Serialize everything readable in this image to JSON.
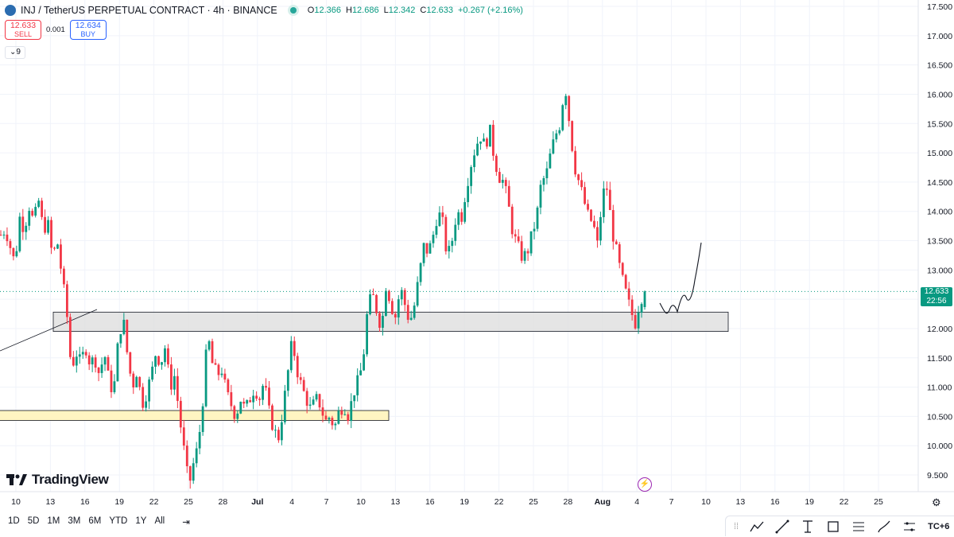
{
  "header": {
    "title": "INJ / TetherUS PERPETUAL CONTRACT · 4h · BINANCE",
    "ohlc": [
      {
        "label": "O",
        "value": "12.366"
      },
      {
        "label": "H",
        "value": "12.686"
      },
      {
        "label": "L",
        "value": "12.342"
      },
      {
        "label": "C",
        "value": "12.633"
      },
      {
        "label": "",
        "value": "+0.267 (+2.16%)"
      }
    ]
  },
  "trade": {
    "sell_price": "12.633",
    "sell_label": "SELL",
    "spread": "0.001",
    "buy_price": "12.634",
    "buy_label": "BUY"
  },
  "indicators_collapse": "9",
  "brand": "TradingView",
  "price_tag": {
    "price": "12.633",
    "countdown": "22:56"
  },
  "timeframes": [
    "1D",
    "5D",
    "1M",
    "3M",
    "6M",
    "YTD",
    "1Y",
    "All"
  ],
  "timezone_label": "TC+6",
  "colors": {
    "up": "#089981",
    "down": "#f23645",
    "zone": "#d9d9d9",
    "yellow_zone": "#fff5c2"
  },
  "chart_data": {
    "type": "candlestick",
    "title": "INJ / TetherUS PERPETUAL CONTRACT · 4h · BINANCE",
    "y_axis_labels": [
      "17.500",
      "17.000",
      "16.500",
      "16.000",
      "15.500",
      "15.000",
      "14.500",
      "14.000",
      "13.500",
      "13.000",
      "12.500",
      "12.000",
      "11.500",
      "11.000",
      "10.500",
      "10.000",
      "9.500"
    ],
    "ylim": [
      9.2,
      17.6
    ],
    "x_axis_labels": [
      "10",
      "13",
      "16",
      "19",
      "22",
      "25",
      "28",
      "Jul",
      "4",
      "7",
      "10",
      "13",
      "16",
      "19",
      "22",
      "25",
      "28",
      "Aug",
      "4",
      "7",
      "10",
      "13",
      "16",
      "19",
      "22",
      "25"
    ],
    "last_price": 12.633,
    "zones": [
      {
        "name": "resistance-support-zone",
        "low": 11.95,
        "high": 12.28
      },
      {
        "name": "demand-zone",
        "low": 10.43,
        "high": 10.6
      }
    ],
    "path_points": [
      [
        0,
        13.6
      ],
      [
        3,
        13.7
      ],
      [
        6,
        13.4
      ],
      [
        9,
        13.1
      ],
      [
        12,
        13.9
      ],
      [
        15,
        13.7
      ],
      [
        18,
        14.1
      ],
      [
        21,
        13.8
      ],
      [
        24,
        14.2
      ],
      [
        27,
        13.7
      ],
      [
        30,
        13.8
      ],
      [
        33,
        13.2
      ],
      [
        36,
        13.5
      ],
      [
        39,
        12.9
      ],
      [
        42,
        12.3
      ],
      [
        45,
        11.3
      ],
      [
        48,
        11.6
      ],
      [
        51,
        11.4
      ],
      [
        54,
        11.7
      ],
      [
        57,
        11.4
      ],
      [
        60,
        11.5
      ],
      [
        63,
        11.2
      ],
      [
        66,
        11.6
      ],
      [
        69,
        11.1
      ],
      [
        72,
        10.9
      ],
      [
        75,
        11.8
      ],
      [
        78,
        12.2
      ],
      [
        81,
        11.5
      ],
      [
        84,
        11.0
      ],
      [
        87,
        11.3
      ],
      [
        90,
        10.7
      ],
      [
        93,
        10.9
      ],
      [
        96,
        11.2
      ],
      [
        99,
        11.6
      ],
      [
        102,
        11.4
      ],
      [
        105,
        11.7
      ],
      [
        108,
        11.0
      ],
      [
        111,
        11.2
      ],
      [
        114,
        10.5
      ],
      [
        117,
        9.9
      ],
      [
        120,
        9.3
      ],
      [
        123,
        9.7
      ],
      [
        126,
        10.0
      ],
      [
        129,
        10.8
      ],
      [
        132,
        11.9
      ],
      [
        135,
        11.4
      ],
      [
        138,
        11.2
      ],
      [
        141,
        11.3
      ],
      [
        144,
        10.9
      ],
      [
        147,
        10.7
      ],
      [
        150,
        10.5
      ],
      [
        153,
        10.8
      ],
      [
        156,
        10.6
      ],
      [
        159,
        10.8
      ],
      [
        162,
        11.0
      ],
      [
        165,
        10.8
      ],
      [
        168,
        11.1
      ],
      [
        171,
        10.6
      ],
      [
        174,
        10.3
      ],
      [
        177,
        10.1
      ],
      [
        180,
        10.6
      ],
      [
        183,
        11.2
      ],
      [
        186,
        11.8
      ],
      [
        189,
        11.3
      ],
      [
        192,
        11.0
      ],
      [
        195,
        10.8
      ],
      [
        198,
        10.6
      ],
      [
        201,
        10.8
      ],
      [
        204,
        10.7
      ],
      [
        207,
        10.4
      ],
      [
        210,
        10.5
      ],
      [
        213,
        10.3
      ],
      [
        216,
        10.6
      ],
      [
        219,
        10.7
      ],
      [
        222,
        10.5
      ],
      [
        225,
        10.9
      ],
      [
        228,
        11.1
      ],
      [
        231,
        11.4
      ],
      [
        234,
        12.3
      ],
      [
        237,
        12.6
      ],
      [
        240,
        12.3
      ],
      [
        243,
        12.0
      ],
      [
        246,
        12.8
      ],
      [
        249,
        12.4
      ],
      [
        252,
        12.2
      ],
      [
        255,
        12.7
      ],
      [
        258,
        12.4
      ],
      [
        261,
        12.1
      ],
      [
        264,
        12.4
      ],
      [
        267,
        12.9
      ],
      [
        270,
        13.4
      ],
      [
        273,
        13.3
      ],
      [
        276,
        13.6
      ],
      [
        279,
        14.0
      ],
      [
        282,
        13.8
      ],
      [
        285,
        13.2
      ],
      [
        288,
        13.5
      ],
      [
        291,
        14.0
      ],
      [
        294,
        13.9
      ],
      [
        297,
        14.4
      ],
      [
        300,
        14.8
      ],
      [
        303,
        15.1
      ],
      [
        306,
        15.3
      ],
      [
        309,
        15.1
      ],
      [
        312,
        15.4
      ],
      [
        315,
        14.9
      ],
      [
        318,
        14.6
      ],
      [
        321,
        14.5
      ],
      [
        324,
        14.1
      ],
      [
        327,
        13.6
      ],
      [
        330,
        13.4
      ],
      [
        333,
        13.2
      ],
      [
        336,
        13.3
      ],
      [
        339,
        13.6
      ],
      [
        342,
        13.9
      ],
      [
        345,
        14.5
      ],
      [
        348,
        14.6
      ],
      [
        351,
        15.0
      ],
      [
        354,
        15.3
      ],
      [
        357,
        15.5
      ],
      [
        360,
        16.2
      ],
      [
        363,
        15.5
      ],
      [
        366,
        14.8
      ],
      [
        369,
        14.5
      ],
      [
        372,
        14.2
      ],
      [
        375,
        13.9
      ],
      [
        378,
        13.8
      ],
      [
        381,
        13.4
      ],
      [
        384,
        14.3
      ],
      [
        387,
        14.4
      ],
      [
        390,
        13.7
      ],
      [
        393,
        13.3
      ],
      [
        396,
        12.9
      ],
      [
        399,
        12.6
      ],
      [
        402,
        12.3
      ],
      [
        405,
        12.1
      ],
      [
        408,
        12.5
      ],
      [
        411,
        12.63
      ]
    ],
    "projection": "drawn path: dip toward ~12.2 then rise to ~13.5"
  }
}
